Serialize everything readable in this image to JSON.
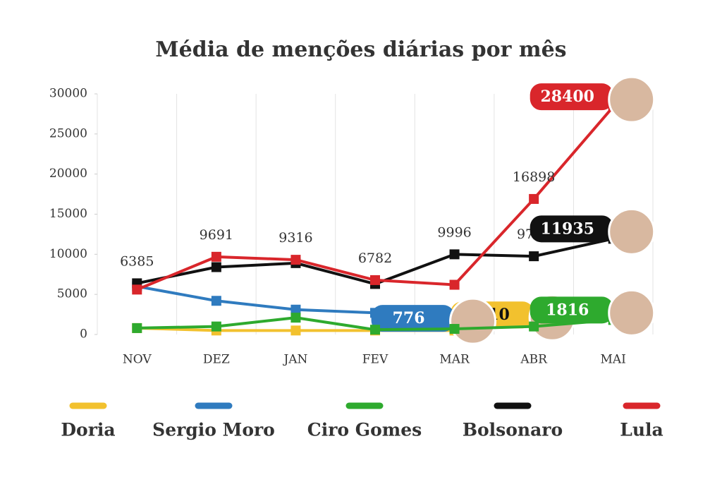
{
  "chart_data": {
    "type": "line",
    "title": "Média de menções diárias por mês",
    "categories": [
      "NOV",
      "DEZ",
      "JAN",
      "FEV",
      "MAR",
      "ABR",
      "MAI"
    ],
    "series": [
      {
        "name": "Doria",
        "color": "#f2c12e",
        "values": [
          800,
          500,
          500,
          500,
          500,
          1210,
          null
        ]
      },
      {
        "name": "Sergio Moro",
        "color": "#2f7bbf",
        "values": [
          6000,
          4200,
          3100,
          2700,
          776,
          null,
          null
        ]
      },
      {
        "name": "Ciro Gomes",
        "color": "#2eaa2e",
        "values": [
          800,
          1000,
          2100,
          600,
          700,
          1000,
          1816
        ]
      },
      {
        "name": "Bolsonaro",
        "color": "#111111",
        "values": [
          6385,
          8400,
          8900,
          6300,
          9996,
          9755,
          11935
        ]
      },
      {
        "name": "Lula",
        "color": "#d9262b",
        "values": [
          5600,
          9691,
          9316,
          6782,
          6200,
          16898,
          28400
        ]
      }
    ],
    "ylim": [
      0,
      30000
    ],
    "yticks": [
      0,
      5000,
      10000,
      15000,
      20000,
      25000,
      30000
    ],
    "grid": true
  }
}
